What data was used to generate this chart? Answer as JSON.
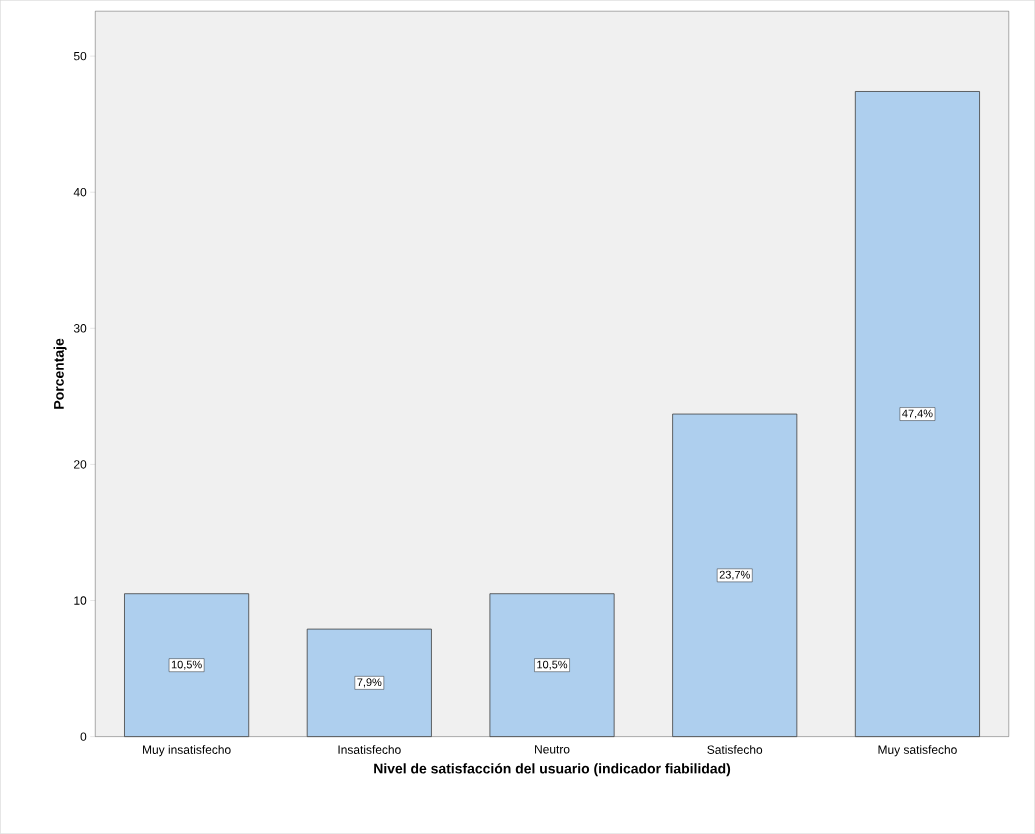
{
  "chart_data": {
    "type": "bar",
    "xlabel": "Nivel de satisfacción del usuario (indicador fiabilidad)",
    "ylabel": "Porcentaje",
    "categories": [
      "Muy insatisfecho",
      "Insatisfecho",
      "Neutro",
      "Satisfecho",
      "Muy satisfecho"
    ],
    "values": [
      10.5,
      7.9,
      10.5,
      23.7,
      47.4
    ],
    "value_labels": [
      "10,5%",
      "7,9%",
      "10,5%",
      "23,7%",
      "47,4%"
    ],
    "color": "#aecfee",
    "ylim": [
      0,
      53.3
    ],
    "yticks": [
      0,
      10,
      20,
      30,
      40,
      50
    ],
    "grid": false
  }
}
